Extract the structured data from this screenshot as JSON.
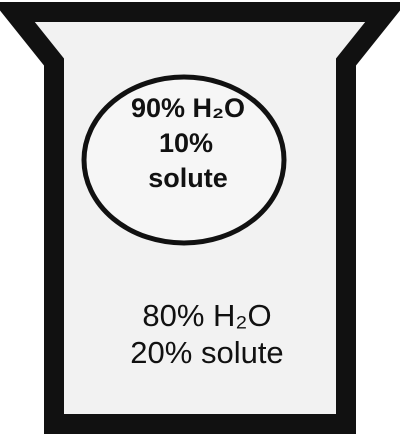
{
  "cell": {
    "lines": [
      "90% H₂O",
      "10%",
      "solute"
    ]
  },
  "beaker": {
    "lines": [
      "80% H₂O",
      "20% solute"
    ]
  }
}
